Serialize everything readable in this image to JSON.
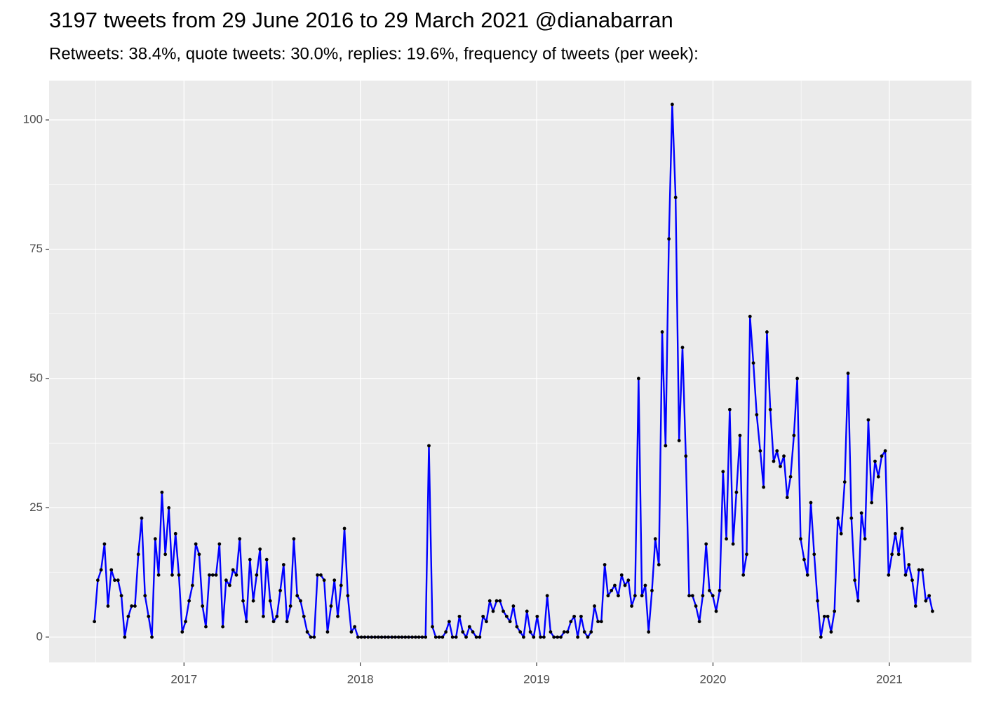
{
  "chart_data": {
    "type": "line",
    "title": "3197 tweets from 29 June 2016 to 29 March 2021 @dianabarran",
    "subtitle": "Retweets: 38.4%, quote tweets: 30.0%, replies: 19.6%, frequency of tweets (per week):",
    "x": [
      2016.492,
      2016.511,
      2016.53,
      2016.549,
      2016.569,
      2016.588,
      2016.607,
      2016.626,
      2016.645,
      2016.664,
      2016.684,
      2016.703,
      2016.722,
      2016.741,
      2016.76,
      2016.779,
      2016.799,
      2016.818,
      2016.837,
      2016.856,
      2016.875,
      2016.894,
      2016.914,
      2016.933,
      2016.952,
      2016.971,
      2016.99,
      2017.009,
      2017.029,
      2017.048,
      2017.067,
      2017.086,
      2017.105,
      2017.124,
      2017.144,
      2017.163,
      2017.182,
      2017.201,
      2017.22,
      2017.239,
      2017.259,
      2017.278,
      2017.297,
      2017.316,
      2017.335,
      2017.354,
      2017.374,
      2017.393,
      2017.412,
      2017.431,
      2017.45,
      2017.469,
      2017.489,
      2017.508,
      2017.527,
      2017.546,
      2017.565,
      2017.584,
      2017.604,
      2017.623,
      2017.642,
      2017.661,
      2017.68,
      2017.699,
      2017.719,
      2017.738,
      2017.757,
      2017.776,
      2017.795,
      2017.814,
      2017.834,
      2017.853,
      2017.872,
      2017.891,
      2017.91,
      2017.929,
      2017.949,
      2017.968,
      2017.987,
      2018.006,
      2018.025,
      2018.044,
      2018.064,
      2018.083,
      2018.102,
      2018.121,
      2018.14,
      2018.159,
      2018.179,
      2018.198,
      2018.217,
      2018.236,
      2018.255,
      2018.274,
      2018.294,
      2018.313,
      2018.332,
      2018.351,
      2018.37,
      2018.389,
      2018.409,
      2018.428,
      2018.447,
      2018.466,
      2018.485,
      2018.504,
      2018.523,
      2018.543,
      2018.562,
      2018.581,
      2018.6,
      2018.619,
      2018.638,
      2018.658,
      2018.677,
      2018.696,
      2018.715,
      2018.734,
      2018.753,
      2018.773,
      2018.792,
      2018.811,
      2018.83,
      2018.849,
      2018.868,
      2018.888,
      2018.907,
      2018.926,
      2018.945,
      2018.964,
      2018.983,
      2019.003,
      2019.022,
      2019.041,
      2019.06,
      2019.079,
      2019.098,
      2019.118,
      2019.137,
      2019.156,
      2019.175,
      2019.194,
      2019.213,
      2019.233,
      2019.252,
      2019.271,
      2019.29,
      2019.309,
      2019.328,
      2019.348,
      2019.367,
      2019.386,
      2019.405,
      2019.424,
      2019.443,
      2019.463,
      2019.482,
      2019.501,
      2019.52,
      2019.539,
      2019.558,
      2019.578,
      2019.597,
      2019.616,
      2019.635,
      2019.654,
      2019.673,
      2019.693,
      2019.712,
      2019.731,
      2019.75,
      2019.769,
      2019.788,
      2019.808,
      2019.827,
      2019.846,
      2019.865,
      2019.884,
      2019.903,
      2019.923,
      2019.942,
      2019.961,
      2019.98,
      2019.999,
      2020.018,
      2020.038,
      2020.057,
      2020.076,
      2020.095,
      2020.114,
      2020.133,
      2020.153,
      2020.172,
      2020.191,
      2020.21,
      2020.229,
      2020.248,
      2020.268,
      2020.287,
      2020.306,
      2020.325,
      2020.344,
      2020.363,
      2020.382,
      2020.402,
      2020.421,
      2020.44,
      2020.459,
      2020.478,
      2020.497,
      2020.517,
      2020.536,
      2020.555,
      2020.574,
      2020.593,
      2020.612,
      2020.632,
      2020.651,
      2020.67,
      2020.689,
      2020.708,
      2020.727,
      2020.747,
      2020.766,
      2020.785,
      2020.804,
      2020.823,
      2020.842,
      2020.862,
      2020.881,
      2020.9,
      2020.919,
      2020.938,
      2020.957,
      2020.977,
      2020.996,
      2021.015,
      2021.034,
      2021.053,
      2021.072,
      2021.092,
      2021.111,
      2021.13,
      2021.149,
      2021.168,
      2021.187,
      2021.207,
      2021.226,
      2021.245
    ],
    "values": [
      3,
      11,
      13,
      18,
      6,
      13,
      11,
      11,
      8,
      0,
      4,
      6,
      6,
      16,
      23,
      8,
      4,
      0,
      19,
      12,
      28,
      16,
      25,
      12,
      20,
      12,
      1,
      3,
      7,
      10,
      18,
      16,
      6,
      2,
      12,
      12,
      12,
      18,
      2,
      11,
      10,
      13,
      12,
      19,
      7,
      3,
      15,
      7,
      12,
      17,
      4,
      15,
      7,
      3,
      4,
      9,
      14,
      3,
      6,
      19,
      8,
      7,
      4,
      1,
      0,
      0,
      12,
      12,
      11,
      1,
      6,
      11,
      4,
      10,
      21,
      8,
      1,
      2,
      0,
      0,
      0,
      0,
      0,
      0,
      0,
      0,
      0,
      0,
      0,
      0,
      0,
      0,
      0,
      0,
      0,
      0,
      0,
      0,
      0,
      37,
      2,
      0,
      0,
      0,
      1,
      3,
      0,
      0,
      4,
      1,
      0,
      2,
      1,
      0,
      0,
      4,
      3,
      7,
      5,
      7,
      7,
      5,
      4,
      3,
      6,
      2,
      1,
      0,
      5,
      1,
      0,
      4,
      0,
      0,
      8,
      1,
      0,
      0,
      0,
      1,
      1,
      3,
      4,
      0,
      4,
      1,
      0,
      1,
      6,
      3,
      3,
      14,
      8,
      9,
      10,
      8,
      12,
      10,
      11,
      6,
      8,
      50,
      8,
      10,
      1,
      9,
      19,
      14,
      59,
      37,
      77,
      103,
      85,
      38,
      56,
      35,
      8,
      8,
      6,
      3,
      8,
      18,
      9,
      8,
      5,
      9,
      32,
      19,
      44,
      18,
      28,
      39,
      12,
      16,
      62,
      53,
      43,
      36,
      29,
      59,
      44,
      34,
      36,
      33,
      35,
      27,
      31,
      39,
      50,
      19,
      15,
      12,
      26,
      16,
      7,
      0,
      4,
      4,
      1,
      5,
      23,
      20,
      30,
      51,
      23,
      11,
      7,
      24,
      19,
      42,
      26,
      34,
      31,
      35,
      36,
      12,
      16,
      20,
      16,
      21,
      12,
      14,
      11,
      6,
      13,
      13,
      7,
      8,
      5
    ],
    "color": "#0000ff",
    "point_color": "#000000",
    "xlim": [
      2016.235,
      2021.466
    ],
    "xticks": [
      2017,
      2018,
      2019,
      2020,
      2021
    ],
    "ylim": [
      -4.9,
      107.6
    ],
    "yticks": [
      0,
      25,
      50,
      75,
      100
    ],
    "grid": true
  }
}
